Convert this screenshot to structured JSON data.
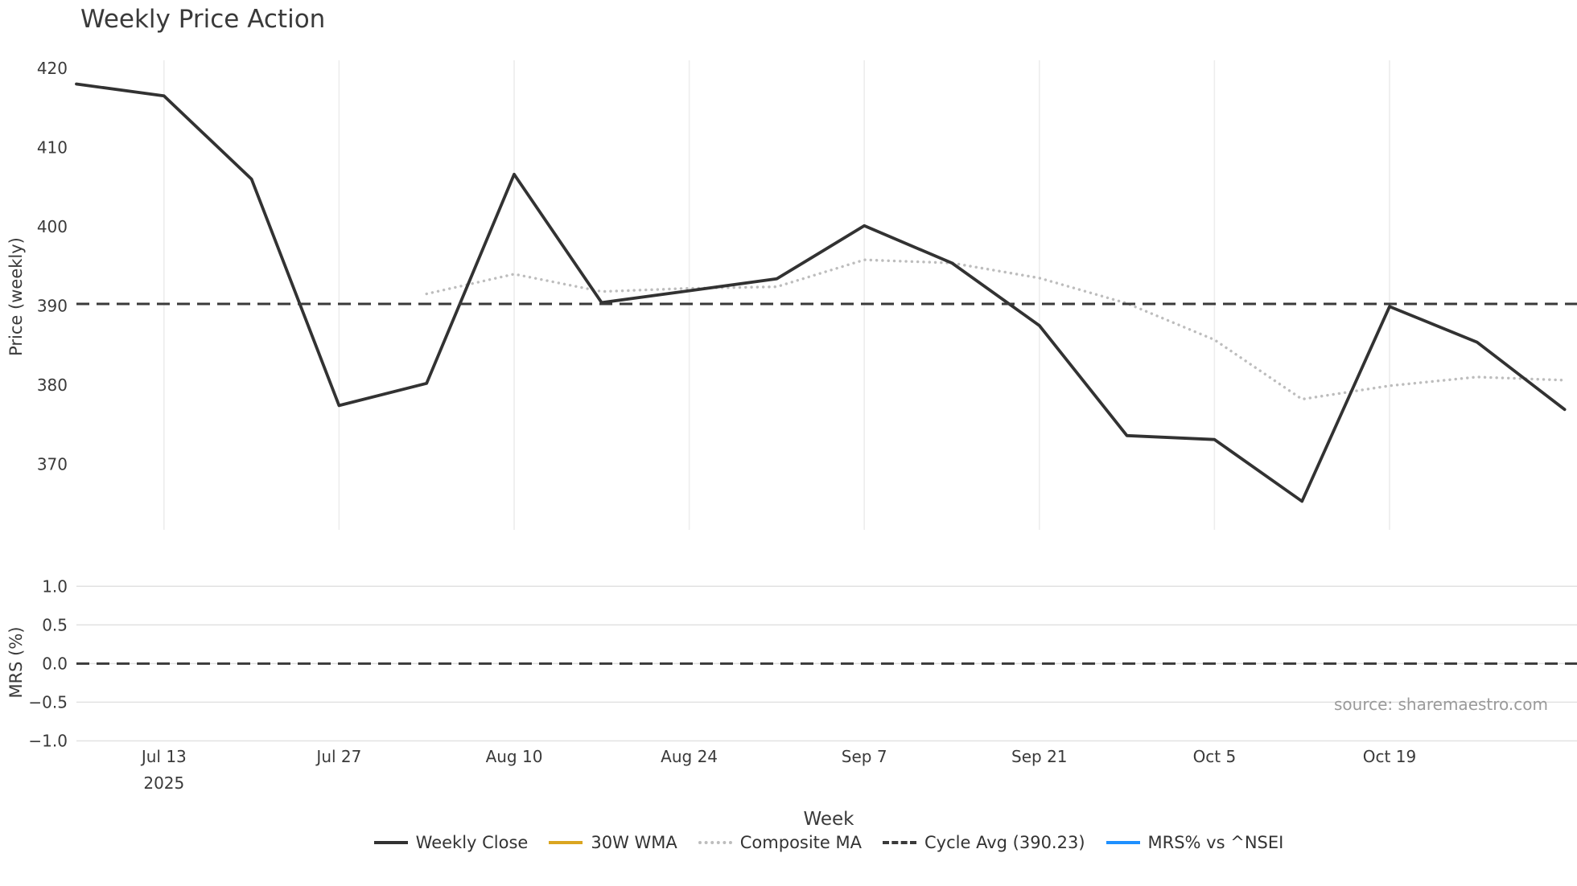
{
  "title": "Weekly Price Action",
  "axes": {
    "y1_label": "Price (weekly)",
    "y2_label": "MRS (%)",
    "x_label": "Week"
  },
  "source": "source: sharemaestro.com",
  "colors": {
    "weekly_close": "#323232",
    "wma_30w": "#DAA520",
    "composite_ma": "#bdbdbd",
    "cycle_avg": "#3a3a3a",
    "mrs_line": "#1e90ff",
    "grid_main": "#ededed",
    "grid_lower": "#e2e2e2",
    "tick_text": "#3a3a3a",
    "source_text": "#9a9a9a"
  },
  "legend": {
    "position": "bottom",
    "items": [
      {
        "label": "Weekly Close",
        "color": "#323232",
        "style": "solid"
      },
      {
        "label": "30W WMA",
        "color": "#DAA520",
        "style": "solid"
      },
      {
        "label": "Composite MA",
        "color": "#bdbdbd",
        "style": "dotted"
      },
      {
        "label": "Cycle Avg (390.23)",
        "color": "#3a3a3a",
        "style": "dashed"
      },
      {
        "label": "MRS% vs ^NSEI",
        "color": "#1e90ff",
        "style": "solid"
      }
    ]
  },
  "chart_data": [
    {
      "type": "line",
      "panel": "price",
      "title": "Weekly Price Action",
      "ylabel": "Price (weekly)",
      "x_unit": "week",
      "ylim": [
        361.7,
        421
      ],
      "grid": "vertical",
      "yticks": [
        {
          "v": 420,
          "label": "420"
        },
        {
          "v": 410,
          "label": "410"
        },
        {
          "v": 400,
          "label": "400"
        },
        {
          "v": 390,
          "label": "390"
        },
        {
          "v": 380,
          "label": "380"
        },
        {
          "v": 370,
          "label": "370"
        }
      ],
      "x_ticks": [
        {
          "index": 1,
          "label": "Jul 13",
          "sublabel": "2025"
        },
        {
          "index": 3,
          "label": "Jul 27"
        },
        {
          "index": 5,
          "label": "Aug 10"
        },
        {
          "index": 7,
          "label": "Aug 24"
        },
        {
          "index": 9,
          "label": "Sep 7"
        },
        {
          "index": 11,
          "label": "Sep 21"
        },
        {
          "index": 13,
          "label": "Oct 5"
        },
        {
          "index": 15,
          "label": "Oct 19"
        }
      ],
      "series": [
        {
          "name": "Weekly Close",
          "color": "#323232",
          "style": "solid",
          "values": [
            418.0,
            416.5,
            406.0,
            377.4,
            380.2,
            406.6,
            390.4,
            391.9,
            393.4,
            400.1,
            395.4,
            387.5,
            373.6,
            373.1,
            365.3,
            389.9,
            385.4,
            376.9
          ]
        },
        {
          "name": "30W WMA",
          "color": "#DAA520",
          "style": "solid",
          "values": []
        },
        {
          "name": "Composite MA",
          "color": "#bdbdbd",
          "style": "dotted",
          "values": [
            null,
            null,
            null,
            null,
            391.5,
            394.0,
            391.8,
            392.2,
            392.4,
            395.8,
            395.4,
            393.5,
            390.3,
            385.7,
            378.2,
            379.9,
            381.0,
            380.6
          ]
        },
        {
          "name": "Cycle Avg (390.23)",
          "color": "#3a3a3a",
          "style": "dashed",
          "constant": 390.23
        }
      ]
    },
    {
      "type": "line",
      "panel": "mrs",
      "ylabel": "MRS (%)",
      "ylim": [
        -1.12,
        1.18
      ],
      "grid": "horizontal",
      "yticks": [
        {
          "v": 1.0,
          "label": "1.0"
        },
        {
          "v": 0.5,
          "label": "0.5"
        },
        {
          "v": 0.0,
          "label": "0.0"
        },
        {
          "v": -0.5,
          "label": "−0.5"
        },
        {
          "v": -1.0,
          "label": "−1.0"
        }
      ],
      "series": [
        {
          "name": "MRS% vs ^NSEI",
          "color": "#1e90ff",
          "style": "solid",
          "values": []
        },
        {
          "name": "Zero line",
          "color": "#3a3a3a",
          "style": "dashed",
          "constant": 0
        }
      ]
    }
  ]
}
